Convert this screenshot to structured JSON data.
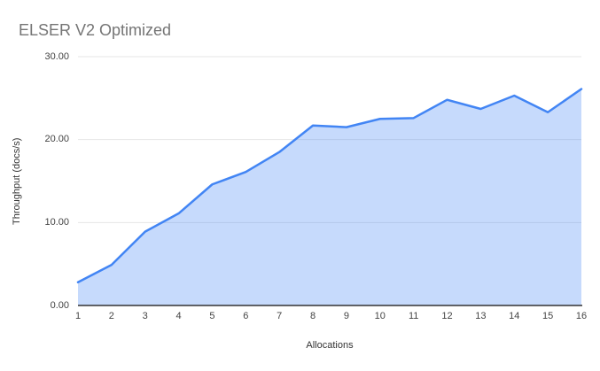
{
  "chart_data": {
    "type": "area",
    "title": "ELSER V2 Optimized",
    "xlabel": "Allocations",
    "ylabel": "Throughput (docs/s)",
    "categories": [
      "1",
      "2",
      "3",
      "4",
      "5",
      "6",
      "7",
      "8",
      "9",
      "10",
      "11",
      "12",
      "13",
      "14",
      "15",
      "16"
    ],
    "values": [
      2.8,
      4.9,
      8.9,
      11.1,
      14.6,
      16.1,
      18.5,
      21.7,
      21.5,
      22.5,
      22.6,
      24.8,
      23.7,
      25.3,
      23.3,
      26.1
    ],
    "ylim": [
      0,
      30
    ],
    "y_ticks": [
      "0.00",
      "10.00",
      "20.00",
      "30.00"
    ],
    "grid": true,
    "legend": "none",
    "colors": {
      "line": "#4285f4",
      "fill": "rgba(66,133,244,0.3)",
      "gridline": "#e6e6e6",
      "axis_line": "#333333",
      "tick_label": "#444444",
      "axis_title": "#333333",
      "title": "#757575",
      "background": "#ffffff"
    }
  }
}
